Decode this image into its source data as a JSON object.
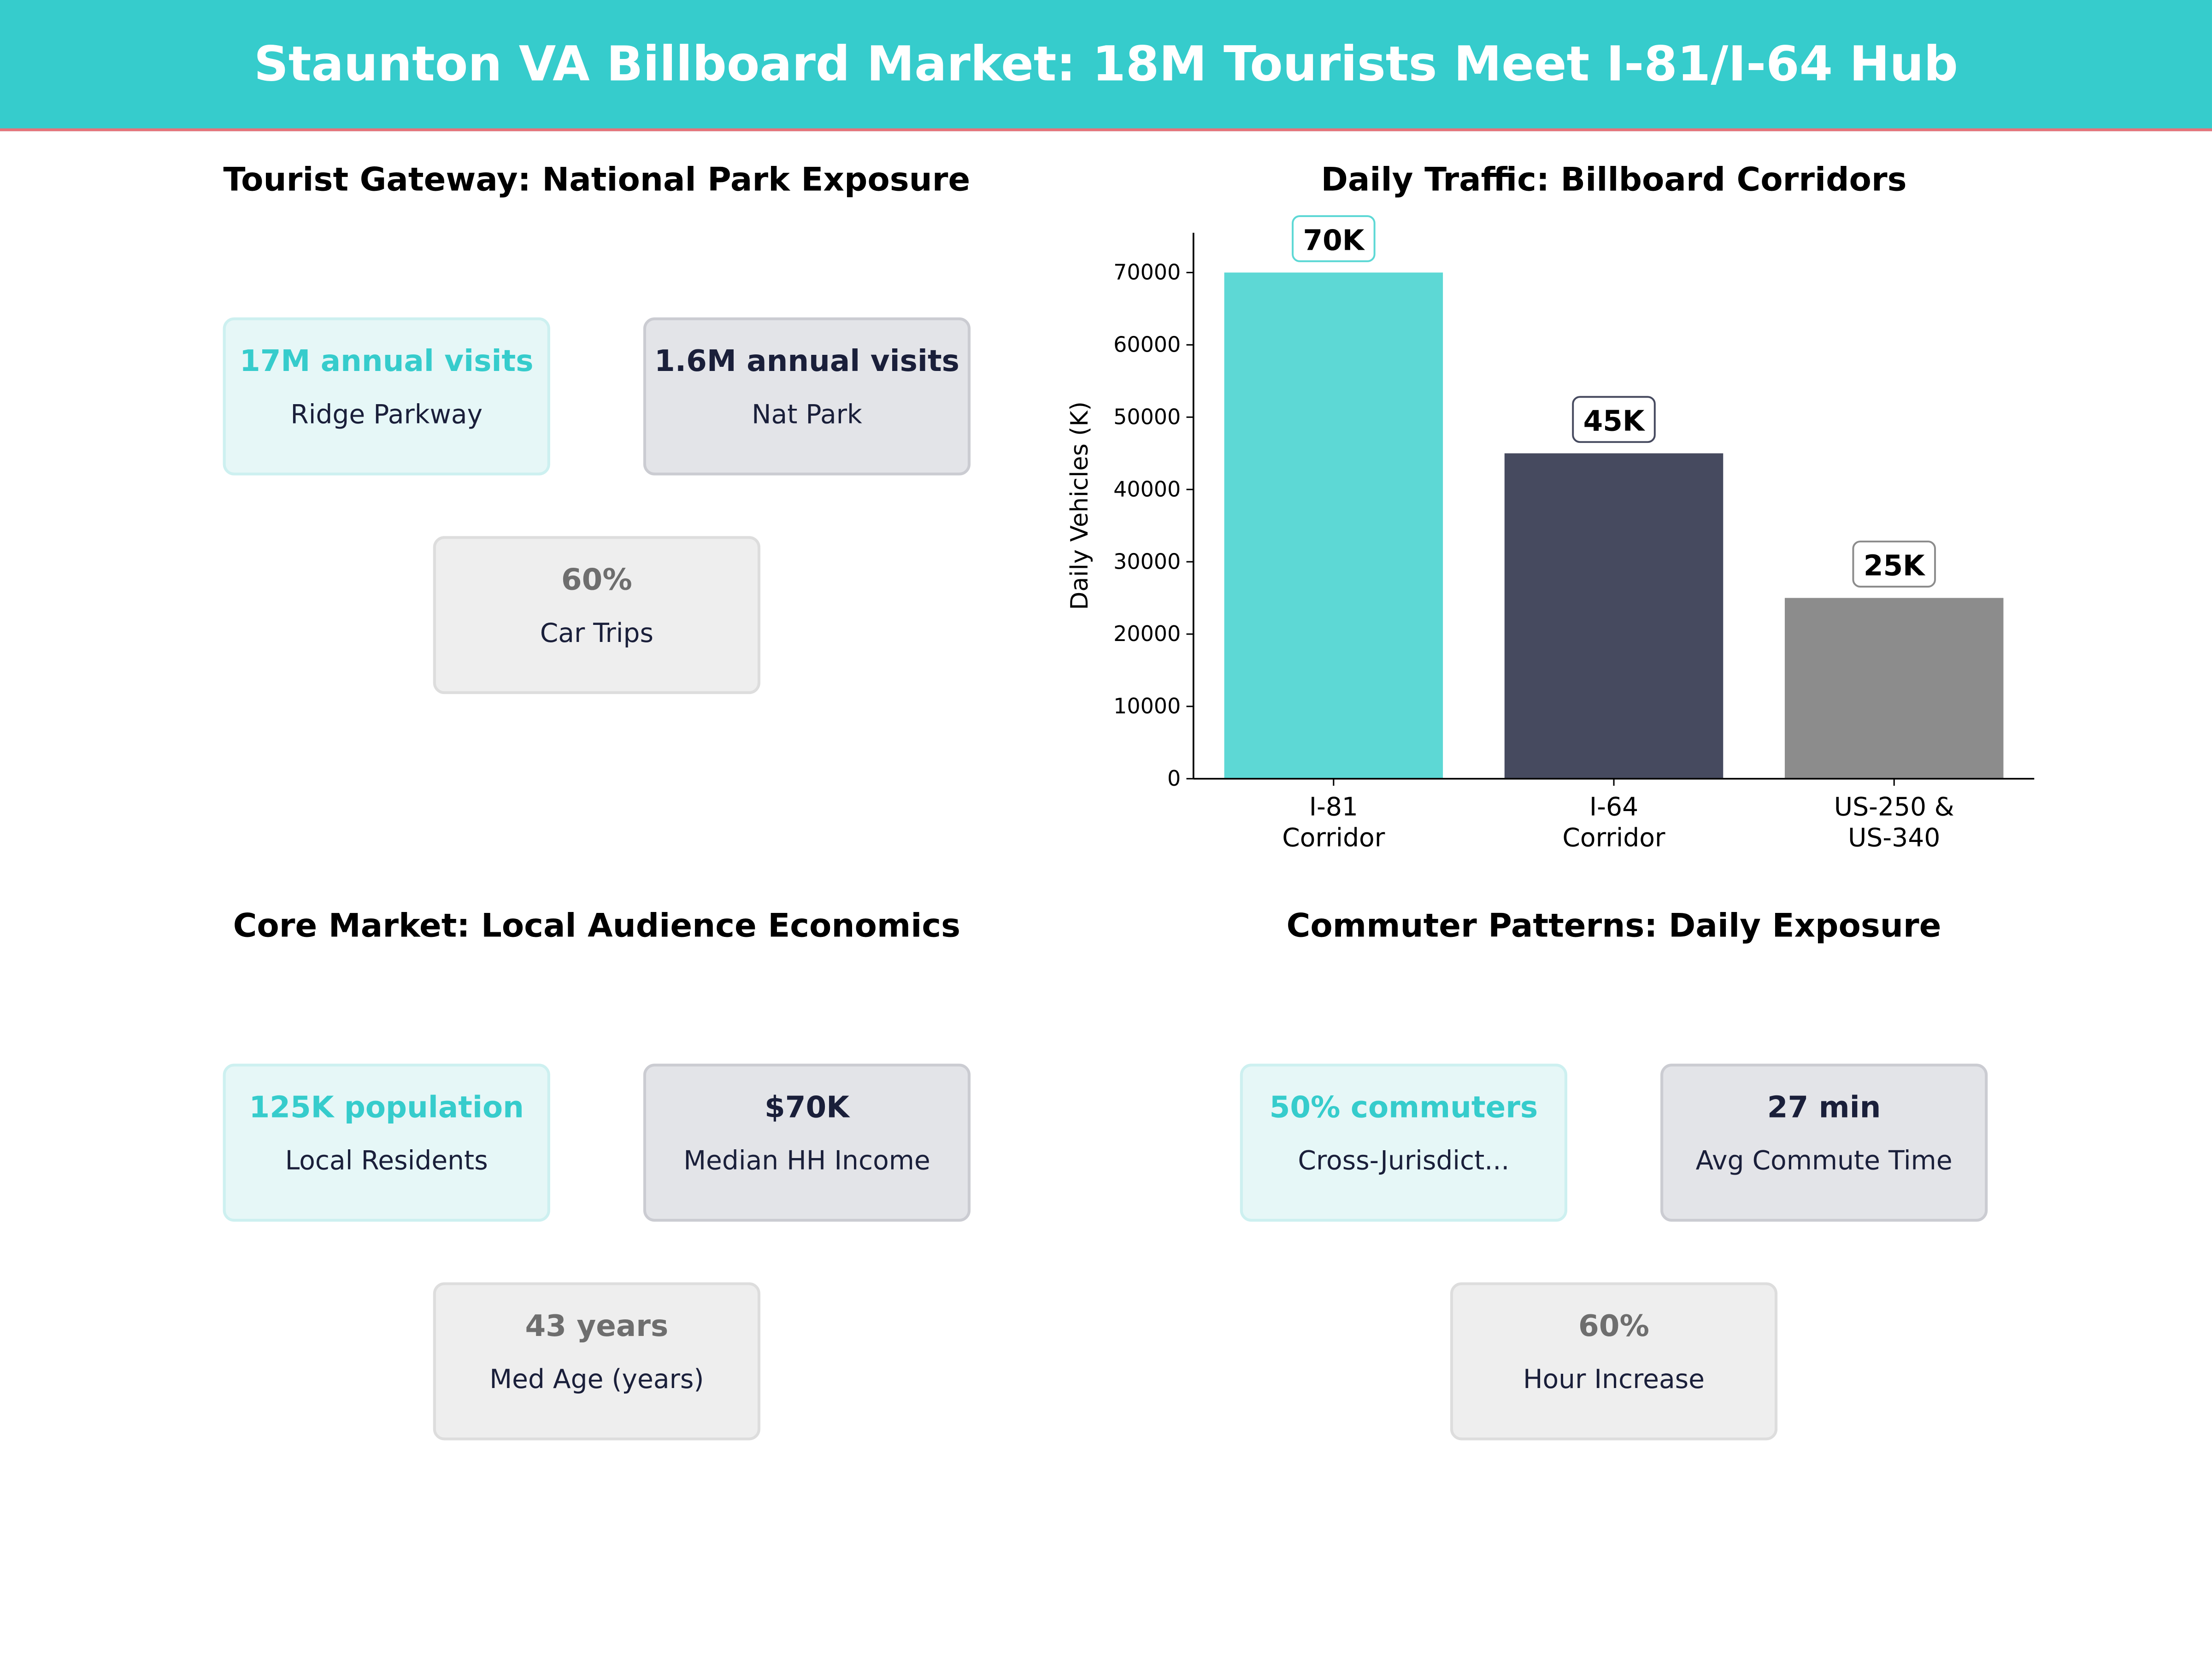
{
  "header": {
    "title": "Staunton VA Billboard Market: 18M Tourists Meet I-81/I-64 Hub"
  },
  "colors": {
    "accent": "#36cccc",
    "dark": "#1a1f3a",
    "gray": "#6e6e6e",
    "header_line": "#e8737a"
  },
  "panels": [
    {
      "title": "Tourist Gateway: National Park Exposure",
      "cards": [
        {
          "value": "17M annual visits",
          "label": "Ridge Parkway"
        },
        {
          "value": "1.6M annual visits",
          "label": "Nat Park"
        },
        {
          "value": "60%",
          "label": "Car Trips"
        }
      ]
    },
    {
      "title": "Core Market: Local Audience Economics",
      "cards": [
        {
          "value": "125K population",
          "label": "Local Residents"
        },
        {
          "value": "$70K",
          "label": "Median HH Income"
        },
        {
          "value": "43 years",
          "label": "Med Age (years)"
        }
      ]
    },
    {
      "title": "Commuter Patterns: Daily Exposure",
      "cards": [
        {
          "value": "50% commuters",
          "label": "Cross-Jurisdict..."
        },
        {
          "value": "27 min",
          "label": "Avg Commute Time"
        },
        {
          "value": "60%",
          "label": "Hour Increase"
        }
      ]
    }
  ],
  "chart_data": {
    "type": "bar",
    "title": "Daily Traffic: Billboard Corridors",
    "xlabel": "",
    "ylabel": "Daily Vehicles (K)",
    "categories": [
      [
        "I-81",
        "Corridor"
      ],
      [
        "I-64",
        "Corridor"
      ],
      [
        "US-250 &",
        "US-340"
      ]
    ],
    "values": [
      70000,
      45000,
      25000
    ],
    "data_labels": [
      "70K",
      "45K",
      "25K"
    ],
    "colors": [
      "#5dd8d5",
      "#464a5f",
      "#8c8c8c"
    ],
    "label_border_colors": [
      "#5dd8d5",
      "#464a5f",
      "#8c8c8c"
    ],
    "yticks": [
      0,
      10000,
      20000,
      30000,
      40000,
      50000,
      60000,
      70000
    ],
    "ylim": [
      0,
      75500
    ],
    "grid": false
  }
}
